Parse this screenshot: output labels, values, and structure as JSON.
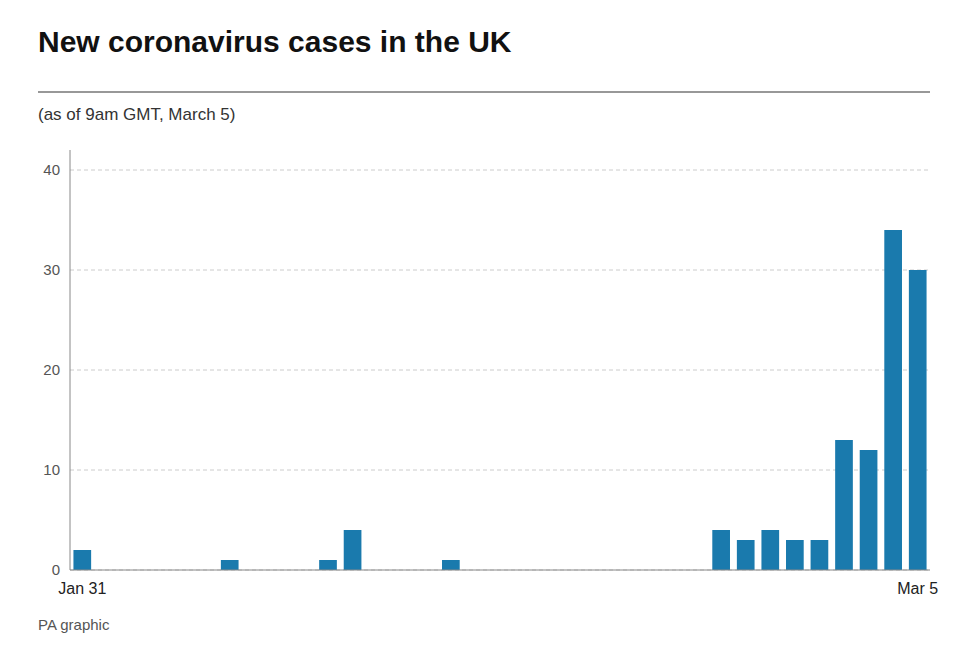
{
  "chart_data": {
    "type": "bar",
    "title": "New coronavirus cases in the UK",
    "subtitle": "(as of 9am GMT, March 5)",
    "footer": "PA graphic",
    "categories": [
      "Jan 31",
      null,
      null,
      null,
      null,
      null,
      null,
      null,
      null,
      null,
      null,
      null,
      null,
      null,
      null,
      null,
      null,
      null,
      null,
      null,
      null,
      null,
      null,
      null,
      null,
      null,
      null,
      null,
      null,
      null,
      null,
      null,
      null,
      null,
      "Mar 5"
    ],
    "values": [
      2,
      0,
      0,
      0,
      0,
      0,
      1,
      0,
      0,
      0,
      1,
      4,
      0,
      0,
      0,
      1,
      0,
      0,
      0,
      0,
      0,
      0,
      0,
      0,
      0,
      0,
      4,
      3,
      4,
      3,
      3,
      13,
      12,
      34,
      30
    ],
    "color": "#1a7aad",
    "ylim": [
      0,
      42
    ],
    "yticks": [
      0,
      10,
      20,
      30,
      40
    ],
    "grid": true
  }
}
